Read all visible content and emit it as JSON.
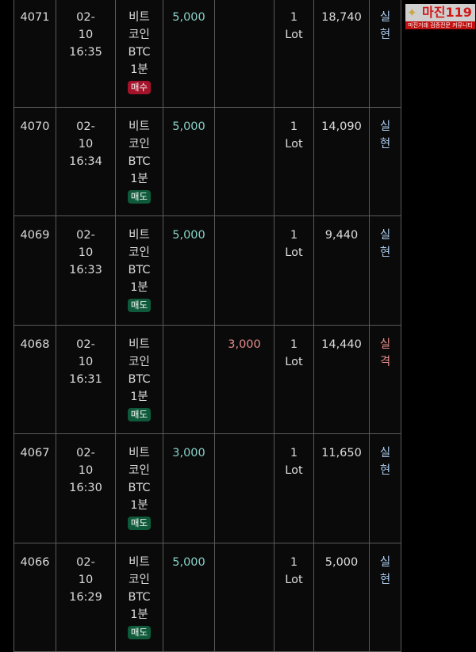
{
  "rows": [
    {
      "id": "4071",
      "date": "02-",
      "day": "10",
      "time": "16:35",
      "name1": "비트",
      "name2": "코인",
      "sym": "BTC",
      "period": "1분",
      "side": "매수",
      "side_type": "buy",
      "profit": "5,000",
      "loss": "",
      "qty": "1",
      "unit": "Lot",
      "price": "18,740",
      "status1": "실",
      "status2": "현",
      "status_type": "real"
    },
    {
      "id": "4070",
      "date": "02-",
      "day": "10",
      "time": "16:34",
      "name1": "비트",
      "name2": "코인",
      "sym": "BTC",
      "period": "1분",
      "side": "매도",
      "side_type": "sell",
      "profit": "5,000",
      "loss": "",
      "qty": "1",
      "unit": "Lot",
      "price": "14,090",
      "status1": "실",
      "status2": "현",
      "status_type": "real"
    },
    {
      "id": "4069",
      "date": "02-",
      "day": "10",
      "time": "16:33",
      "name1": "비트",
      "name2": "코인",
      "sym": "BTC",
      "period": "1분",
      "side": "매도",
      "side_type": "sell",
      "profit": "5,000",
      "loss": "",
      "qty": "1",
      "unit": "Lot",
      "price": "9,440",
      "status1": "실",
      "status2": "현",
      "status_type": "real"
    },
    {
      "id": "4068",
      "date": "02-",
      "day": "10",
      "time": "16:31",
      "name1": "비트",
      "name2": "코인",
      "sym": "BTC",
      "period": "1분",
      "side": "매도",
      "side_type": "sell",
      "profit": "",
      "loss": "3,000",
      "qty": "1",
      "unit": "Lot",
      "price": "14,440",
      "status1": "실",
      "status2": "격",
      "status_type": "loss"
    },
    {
      "id": "4067",
      "date": "02-",
      "day": "10",
      "time": "16:30",
      "name1": "비트",
      "name2": "코인",
      "sym": "BTC",
      "period": "1분",
      "side": "매도",
      "side_type": "sell",
      "profit": "3,000",
      "loss": "",
      "qty": "1",
      "unit": "Lot",
      "price": "11,650",
      "status1": "실",
      "status2": "현",
      "status_type": "real"
    },
    {
      "id": "4066",
      "date": "02-",
      "day": "10",
      "time": "16:29",
      "name1": "비트",
      "name2": "코인",
      "sym": "BTC",
      "period": "1분",
      "side": "매도",
      "side_type": "sell",
      "profit": "5,000",
      "loss": "",
      "qty": "1",
      "unit": "Lot",
      "price": "5,000",
      "status1": "실",
      "status2": "현",
      "status_type": "real"
    }
  ],
  "colors": {
    "profit": "#86cfc6",
    "loss": "#e88d8d",
    "buy": "#a3132a",
    "sell": "#0f5a3a",
    "status_real": "#a9c9ec"
  },
  "watermark": {
    "title": "마진119",
    "subtitle": "마진거래 검증전문 커뮤니티"
  }
}
